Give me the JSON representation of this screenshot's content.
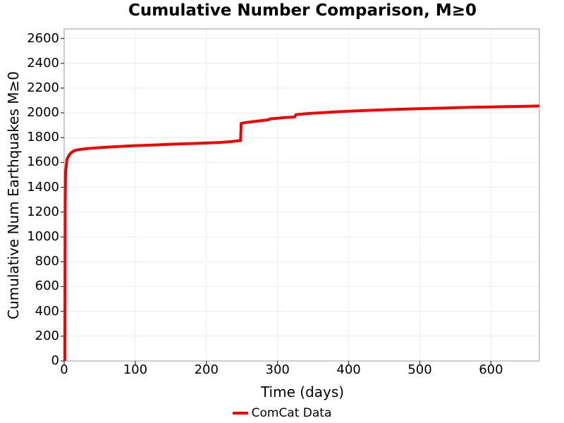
{
  "chart_data": {
    "type": "line",
    "title": "Cumulative Number Comparison, M≥0",
    "xlabel": "Time (days)",
    "ylabel": "Cumulative Num Earthquakes M≥0",
    "xlim": [
      0,
      668
    ],
    "ylim": [
      0,
      2677
    ],
    "x_ticks": [
      0,
      100,
      200,
      300,
      400,
      500,
      600
    ],
    "y_ticks": [
      0,
      200,
      400,
      600,
      800,
      1000,
      1200,
      1400,
      1600,
      1800,
      2000,
      2200,
      2400,
      2600
    ],
    "grid": true,
    "grid_color": "#ececec",
    "spine_color": "#a9a9a9",
    "tick_color": "#333333",
    "legend": {
      "position": "bottom-center",
      "entries": [
        {
          "label": "ComCat Data",
          "color": "#f40000"
        }
      ]
    },
    "series": [
      {
        "name": "ComCat Data",
        "color": "#f40000",
        "linewidth": 4,
        "x": [
          1,
          1.5,
          2,
          4,
          7,
          10,
          15,
          20,
          30,
          45,
          60,
          80,
          100,
          125,
          150,
          175,
          200,
          220,
          235,
          246,
          248,
          249,
          255,
          265,
          275,
          287,
          289,
          300,
          310,
          322,
          324,
          326,
          340,
          355,
          370,
          385,
          400,
          420,
          440,
          460,
          480,
          500,
          520,
          540,
          560,
          580,
          600,
          620,
          640,
          655,
          668
        ],
        "y": [
          0,
          1300,
          1520,
          1625,
          1660,
          1680,
          1697,
          1703,
          1711,
          1718,
          1724,
          1730,
          1736,
          1741,
          1747,
          1752,
          1757,
          1762,
          1768,
          1776,
          1778,
          1915,
          1922,
          1929,
          1936,
          1944,
          1952,
          1957,
          1962,
          1966,
          1968,
          1986,
          1994,
          1999,
          2004,
          2009,
          2013,
          2018,
          2023,
          2027,
          2031,
          2034,
          2037,
          2040,
          2043,
          2046,
          2048,
          2050,
          2052,
          2054,
          2056
        ]
      }
    ]
  }
}
